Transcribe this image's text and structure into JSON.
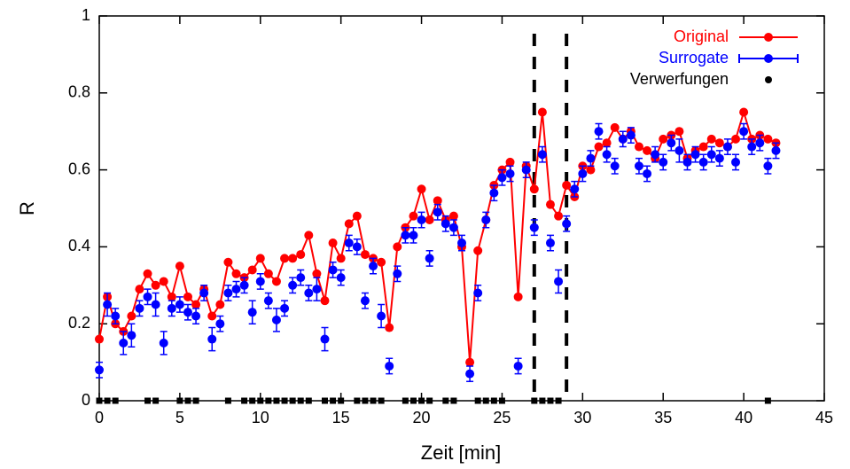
{
  "chart_data": {
    "type": "line",
    "xlabel": "Zeit [min]",
    "ylabel": "R",
    "xlim": [
      0,
      45
    ],
    "ylim": [
      0,
      1
    ],
    "xticks": [
      0,
      5,
      10,
      15,
      20,
      25,
      30,
      35,
      40,
      45
    ],
    "yticks": [
      0,
      0.2,
      0.4,
      0.6,
      0.8,
      1
    ],
    "x": [
      0,
      0.5,
      1,
      1.5,
      2,
      2.5,
      3,
      3.5,
      4,
      4.5,
      5,
      5.5,
      6,
      6.5,
      7,
      7.5,
      8,
      8.5,
      9,
      9.5,
      10,
      10.5,
      11,
      11.5,
      12,
      12.5,
      13,
      13.5,
      14,
      14.5,
      15,
      15.5,
      16,
      16.5,
      17,
      17.5,
      18,
      18.5,
      19,
      19.5,
      20,
      20.5,
      21,
      21.5,
      22,
      22.5,
      23,
      23.5,
      24,
      24.5,
      25,
      25.5,
      26,
      26.5,
      27,
      27.5,
      28,
      28.5,
      29,
      29.5,
      30,
      30.5,
      31,
      31.5,
      32,
      32.5,
      33,
      33.5,
      34,
      34.5,
      35,
      35.5,
      36,
      36.5,
      37,
      37.5,
      38,
      38.5,
      39,
      39.5,
      40,
      40.5,
      41,
      41.5,
      42
    ],
    "vlines": [
      27,
      29
    ],
    "series": [
      {
        "name": "Original",
        "color": "#ff0000",
        "values": [
          0.16,
          0.27,
          0.2,
          0.18,
          0.22,
          0.29,
          0.33,
          0.3,
          0.31,
          0.27,
          0.35,
          0.27,
          0.25,
          0.29,
          0.22,
          0.25,
          0.36,
          0.33,
          0.32,
          0.34,
          0.37,
          0.33,
          0.31,
          0.37,
          0.37,
          0.38,
          0.43,
          0.33,
          0.26,
          0.41,
          0.37,
          0.46,
          0.48,
          0.38,
          0.37,
          0.36,
          0.19,
          0.4,
          0.45,
          0.48,
          0.55,
          0.47,
          0.52,
          0.47,
          0.48,
          0.4,
          0.1,
          0.39,
          0.47,
          0.56,
          0.6,
          0.62,
          0.27,
          0.61,
          0.55,
          0.75,
          0.51,
          0.48,
          0.56,
          0.53,
          0.61,
          0.6,
          0.66,
          0.67,
          0.71,
          0.68,
          0.7,
          0.66,
          0.65,
          0.63,
          0.68,
          0.69,
          0.7,
          0.63,
          0.65,
          0.66,
          0.68,
          0.67,
          0.66,
          0.68,
          0.75,
          0.68,
          0.69,
          0.68,
          0.67
        ]
      },
      {
        "name": "Surrogate",
        "color": "#0000ff",
        "values": [
          0.08,
          0.25,
          0.22,
          0.15,
          0.17,
          0.24,
          0.27,
          0.25,
          0.15,
          0.24,
          0.25,
          0.23,
          0.22,
          0.28,
          0.16,
          0.2,
          0.28,
          0.29,
          0.3,
          0.23,
          0.31,
          0.26,
          0.21,
          0.24,
          0.3,
          0.32,
          0.28,
          0.29,
          0.16,
          0.34,
          0.32,
          0.41,
          0.4,
          0.26,
          0.35,
          0.22,
          0.09,
          0.33,
          0.43,
          0.43,
          0.47,
          0.37,
          0.49,
          0.46,
          0.45,
          0.41,
          0.07,
          0.28,
          0.47,
          0.54,
          0.58,
          0.59,
          0.09,
          0.6,
          0.45,
          0.64,
          0.41,
          0.31,
          0.46,
          0.55,
          0.59,
          0.63,
          0.7,
          0.64,
          0.61,
          0.68,
          0.69,
          0.61,
          0.59,
          0.64,
          0.62,
          0.67,
          0.65,
          0.62,
          0.64,
          0.62,
          0.64,
          0.63,
          0.66,
          0.62,
          0.7,
          0.66,
          0.67,
          0.61,
          0.65
        ],
        "errors": [
          0.02,
          0.03,
          0.02,
          0.03,
          0.03,
          0.02,
          0.02,
          0.03,
          0.03,
          0.02,
          0.02,
          0.02,
          0.02,
          0.02,
          0.03,
          0.02,
          0.02,
          0.02,
          0.02,
          0.03,
          0.02,
          0.02,
          0.03,
          0.02,
          0.02,
          0.02,
          0.02,
          0.03,
          0.03,
          0.02,
          0.02,
          0.02,
          0.02,
          0.02,
          0.02,
          0.03,
          0.02,
          0.02,
          0.02,
          0.02,
          0.02,
          0.02,
          0.02,
          0.02,
          0.02,
          0.02,
          0.02,
          0.02,
          0.02,
          0.02,
          0.02,
          0.02,
          0.02,
          0.02,
          0.02,
          0.02,
          0.02,
          0.03,
          0.02,
          0.02,
          0.02,
          0.02,
          0.02,
          0.02,
          0.02,
          0.02,
          0.02,
          0.02,
          0.02,
          0.02,
          0.02,
          0.02,
          0.03,
          0.02,
          0.02,
          0.02,
          0.02,
          0.02,
          0.02,
          0.02,
          0.02,
          0.02,
          0.02,
          0.02,
          0.02
        ]
      },
      {
        "name": "Verwerfungen",
        "color": "#000000",
        "x": [
          0,
          0.5,
          1,
          3,
          3.5,
          5,
          5.5,
          6,
          8,
          9,
          9.5,
          10,
          10.5,
          11,
          11.5,
          12,
          12.5,
          13,
          14,
          14.5,
          15,
          16,
          16.5,
          17,
          17.5,
          19,
          19.5,
          20,
          20.5,
          21.5,
          22,
          23.5,
          24,
          24.5,
          25,
          27,
          27.5,
          28,
          28.5,
          41.5
        ],
        "values": [
          0,
          0,
          0,
          0,
          0,
          0,
          0,
          0,
          0,
          0,
          0,
          0,
          0,
          0,
          0,
          0,
          0,
          0,
          0,
          0,
          0,
          0,
          0,
          0,
          0,
          0,
          0,
          0,
          0,
          0,
          0,
          0,
          0,
          0,
          0,
          0,
          0,
          0,
          0,
          0
        ]
      }
    ]
  }
}
